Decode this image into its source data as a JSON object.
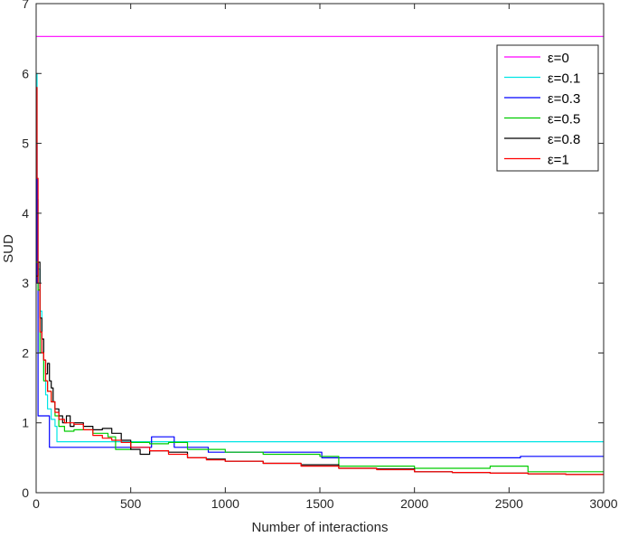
{
  "chart_data": {
    "type": "line",
    "title": "",
    "xlabel": "Number of interactions",
    "ylabel": "SUD",
    "xlim": [
      0,
      3000
    ],
    "ylim": [
      0,
      7
    ],
    "xticks": [
      0,
      500,
      1000,
      1500,
      2000,
      2500,
      3000
    ],
    "yticks": [
      0,
      1,
      2,
      3,
      4,
      5,
      6,
      7
    ],
    "grid": false,
    "legend_position": "top-right",
    "series": [
      {
        "name": "ε=0",
        "color": "#ff00ff",
        "x": [
          0,
          3000
        ],
        "y": [
          6.53,
          6.53
        ]
      },
      {
        "name": "ε=0.1",
        "color": "#00e5e5",
        "x": [
          0,
          5,
          10,
          20,
          30,
          40,
          50,
          60,
          80,
          100,
          110,
          130,
          3000
        ],
        "y": [
          6.0,
          4.2,
          3.2,
          2.6,
          2.0,
          1.6,
          1.4,
          1.2,
          1.05,
          0.95,
          0.73,
          0.73,
          0.73
        ]
      },
      {
        "name": "ε=0.3",
        "color": "#0000ff",
        "x": [
          0,
          5,
          10,
          20,
          30,
          60,
          70,
          600,
          610,
          720,
          730,
          900,
          910,
          1500,
          1510,
          2550,
          2560,
          3000
        ],
        "y": [
          5.0,
          3.0,
          1.1,
          1.1,
          1.1,
          1.1,
          0.65,
          0.65,
          0.8,
          0.8,
          0.65,
          0.65,
          0.58,
          0.58,
          0.5,
          0.5,
          0.52,
          0.52
        ]
      },
      {
        "name": "ε=0.5",
        "color": "#00cc00",
        "x": [
          0,
          10,
          20,
          40,
          60,
          80,
          100,
          120,
          150,
          200,
          300,
          380,
          420,
          500,
          600,
          700,
          800,
          900,
          1000,
          1200,
          1500,
          1600,
          2000,
          2400,
          2600,
          2700,
          3000
        ],
        "y": [
          3.3,
          2.9,
          2.0,
          1.6,
          1.45,
          1.3,
          1.1,
          0.95,
          0.88,
          0.9,
          0.85,
          0.8,
          0.62,
          0.72,
          0.7,
          0.72,
          0.62,
          0.62,
          0.58,
          0.55,
          0.52,
          0.38,
          0.35,
          0.38,
          0.3,
          0.3,
          0.3
        ]
      },
      {
        "name": "ε=0.8",
        "color": "#000000",
        "x": [
          0,
          10,
          20,
          30,
          40,
          50,
          60,
          70,
          80,
          90,
          100,
          120,
          140,
          160,
          180,
          200,
          250,
          300,
          350,
          400,
          450,
          500,
          550,
          600,
          700,
          800,
          900,
          1000,
          1200,
          1400,
          1600,
          1800,
          2000,
          2200,
          2400,
          2600,
          2800,
          3000
        ],
        "y": [
          3.1,
          3.3,
          2.5,
          2.2,
          1.9,
          1.7,
          1.85,
          1.6,
          1.5,
          1.3,
          1.2,
          1.1,
          1.0,
          1.1,
          0.95,
          1.0,
          0.95,
          0.9,
          0.92,
          0.85,
          0.75,
          0.62,
          0.55,
          0.6,
          0.58,
          0.5,
          0.48,
          0.45,
          0.42,
          0.4,
          0.35,
          0.34,
          0.3,
          0.29,
          0.28,
          0.27,
          0.26,
          0.26
        ]
      },
      {
        "name": "ε=1",
        "color": "#ff0000",
        "x": [
          0,
          5,
          10,
          20,
          30,
          40,
          50,
          60,
          80,
          100,
          120,
          150,
          200,
          250,
          300,
          350,
          400,
          450,
          500,
          600,
          700,
          800,
          900,
          1000,
          1200,
          1400,
          1600,
          1800,
          2000,
          2200,
          2400,
          2600,
          2800,
          3000
        ],
        "y": [
          5.8,
          4.5,
          3.0,
          2.3,
          2.0,
          1.9,
          1.6,
          1.45,
          1.3,
          1.15,
          1.05,
          1.0,
          0.98,
          0.9,
          0.82,
          0.78,
          0.75,
          0.72,
          0.65,
          0.6,
          0.55,
          0.5,
          0.47,
          0.45,
          0.42,
          0.38,
          0.35,
          0.33,
          0.3,
          0.29,
          0.28,
          0.27,
          0.26,
          0.26
        ]
      }
    ]
  }
}
